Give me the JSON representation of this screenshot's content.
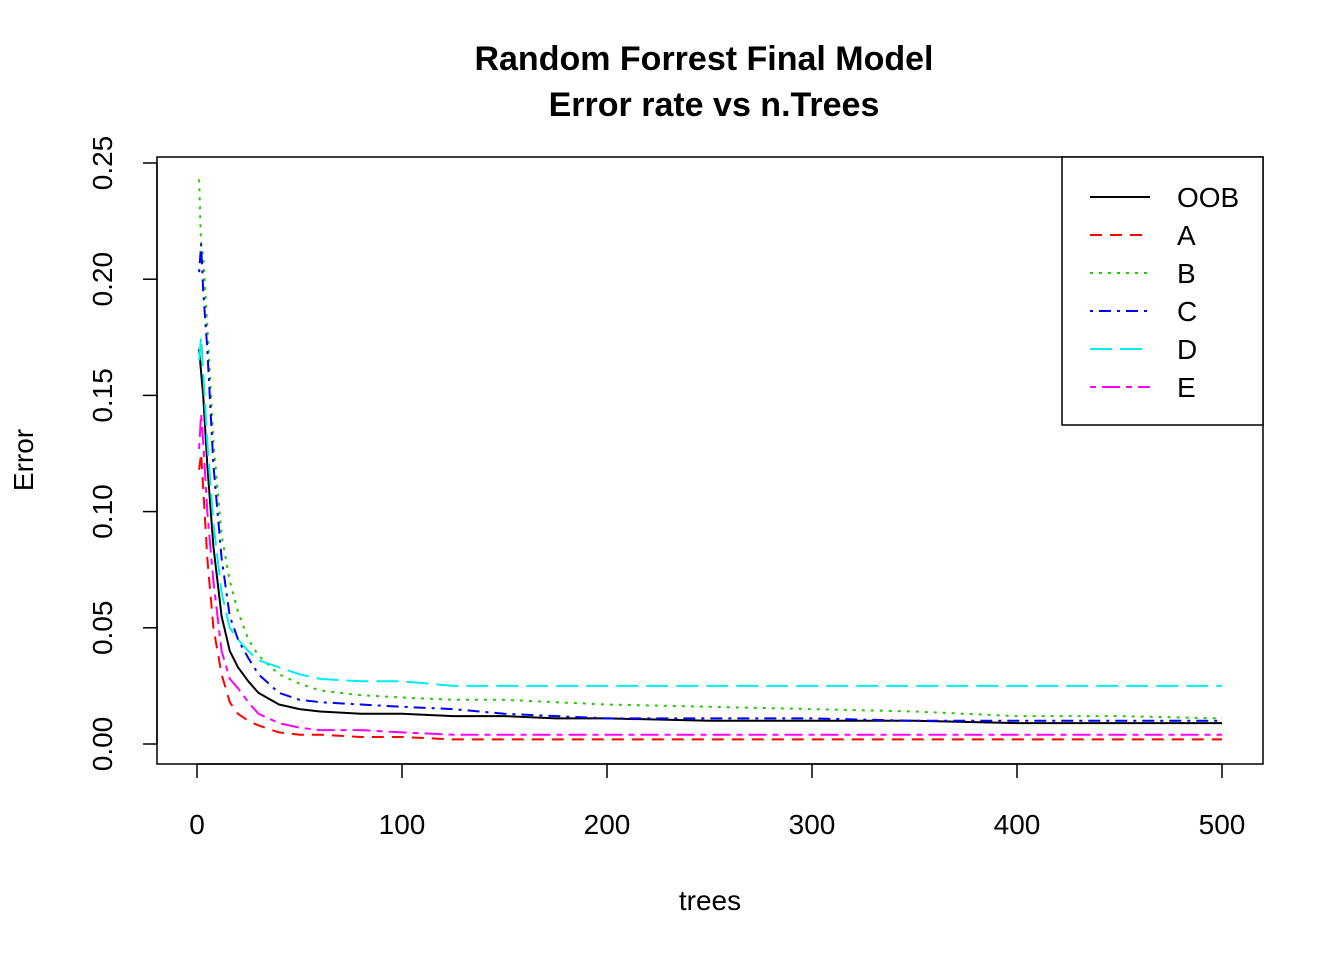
{
  "chart_data": {
    "type": "line",
    "title": "Random Forrest Final Model",
    "subtitle": "Error rate vs n.Trees",
    "xlabel": "trees",
    "ylabel": "Error",
    "xlim": [
      0,
      500
    ],
    "ylim": [
      0,
      0.25
    ],
    "xticks": [
      "0",
      "100",
      "200",
      "300",
      "400",
      "500"
    ],
    "yticks": [
      "0.00",
      "0.05",
      "0.10",
      "0.15",
      "0.20",
      "0.25"
    ],
    "grid": false,
    "legend": "top-right",
    "x": [
      1,
      2,
      3,
      5,
      8,
      12,
      16,
      20,
      25,
      30,
      40,
      50,
      60,
      80,
      100,
      125,
      150,
      175,
      200,
      250,
      300,
      350,
      400,
      450,
      500
    ],
    "series": [
      {
        "name": "OOB",
        "color": "#000000",
        "dash": "solid",
        "values": [
          0.17,
          0.16,
          0.15,
          0.12,
          0.085,
          0.055,
          0.04,
          0.033,
          0.027,
          0.022,
          0.017,
          0.015,
          0.014,
          0.013,
          0.013,
          0.012,
          0.012,
          0.011,
          0.011,
          0.01,
          0.01,
          0.01,
          0.009,
          0.009,
          0.009
        ]
      },
      {
        "name": "A",
        "color": "#ff0000",
        "dash": "dashed",
        "values": [
          0.118,
          0.125,
          0.11,
          0.08,
          0.05,
          0.03,
          0.018,
          0.013,
          0.01,
          0.008,
          0.005,
          0.004,
          0.004,
          0.003,
          0.003,
          0.002,
          0.002,
          0.002,
          0.002,
          0.002,
          0.002,
          0.002,
          0.002,
          0.002,
          0.002
        ]
      },
      {
        "name": "B",
        "color": "#22cc00",
        "dash": "dotted",
        "values": [
          0.243,
          0.215,
          0.21,
          0.18,
          0.13,
          0.09,
          0.07,
          0.057,
          0.045,
          0.038,
          0.03,
          0.026,
          0.023,
          0.021,
          0.02,
          0.019,
          0.019,
          0.018,
          0.017,
          0.016,
          0.015,
          0.014,
          0.012,
          0.012,
          0.011
        ]
      },
      {
        "name": "C",
        "color": "#0000ff",
        "dash": "dotdash",
        "values": [
          0.203,
          0.215,
          0.195,
          0.17,
          0.12,
          0.08,
          0.055,
          0.045,
          0.037,
          0.03,
          0.022,
          0.019,
          0.018,
          0.017,
          0.016,
          0.015,
          0.013,
          0.012,
          0.011,
          0.011,
          0.011,
          0.01,
          0.01,
          0.01,
          0.01
        ]
      },
      {
        "name": "D",
        "color": "#00eeee",
        "dash": "longdash",
        "values": [
          0.165,
          0.175,
          0.16,
          0.13,
          0.095,
          0.065,
          0.05,
          0.045,
          0.04,
          0.036,
          0.033,
          0.03,
          0.028,
          0.027,
          0.027,
          0.025,
          0.025,
          0.025,
          0.025,
          0.025,
          0.025,
          0.025,
          0.025,
          0.025,
          0.025
        ]
      },
      {
        "name": "E",
        "color": "#ff00ff",
        "dash": "twodash",
        "values": [
          0.127,
          0.142,
          0.13,
          0.1,
          0.07,
          0.04,
          0.028,
          0.024,
          0.018,
          0.013,
          0.009,
          0.007,
          0.006,
          0.006,
          0.005,
          0.004,
          0.004,
          0.004,
          0.004,
          0.004,
          0.004,
          0.004,
          0.004,
          0.004,
          0.004
        ]
      }
    ]
  }
}
